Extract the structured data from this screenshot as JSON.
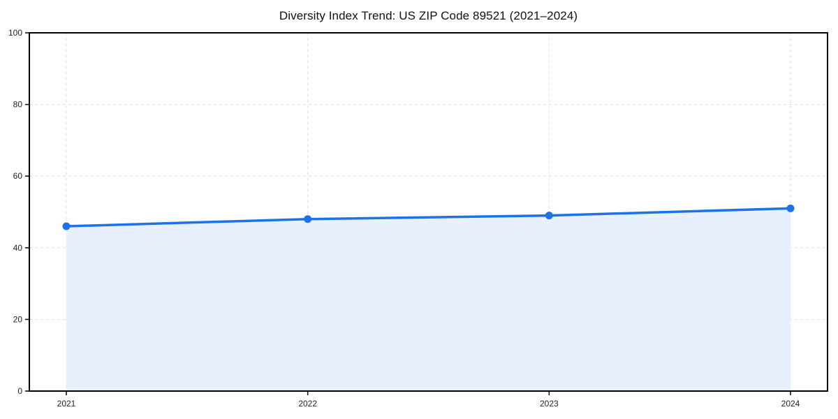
{
  "page": {
    "background": "#ffffff"
  },
  "chart_data": {
    "type": "area",
    "title": "Diversity Index Trend: US ZIP Code 89521 (2021–2024)",
    "categories": [
      "2021",
      "2022",
      "2023",
      "2024"
    ],
    "series": [
      {
        "name": "Diversity Index",
        "values": [
          46,
          48,
          49,
          51
        ]
      }
    ],
    "xlabel": "",
    "ylabel": "",
    "ylim": [
      0,
      100
    ],
    "yticks": [
      0,
      20,
      40,
      60,
      80,
      100
    ],
    "grid": true,
    "grid_style": "dashed",
    "legend": false,
    "colors": {
      "line": "#1a73e8",
      "marker": "#1a73e8",
      "fill": "#e8f0fd",
      "gridline": "#dedede",
      "axis": "#000000",
      "tick_label": "#222222",
      "title": "#111111",
      "background": "#ffffff"
    }
  }
}
